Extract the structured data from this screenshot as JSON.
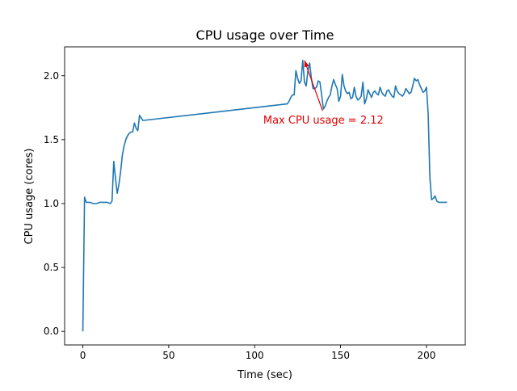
{
  "chart_data": {
    "type": "line",
    "title": "CPU usage over Time",
    "xlabel": "Time (sec)",
    "ylabel": "CPU usage (cores)",
    "xlim": [
      -10.6,
      222.6
    ],
    "ylim": [
      -0.106,
      2.226
    ],
    "xticks": [
      0,
      50,
      100,
      150,
      200
    ],
    "xtick_labels": [
      "0",
      "50",
      "100",
      "150",
      "200"
    ],
    "yticks": [
      0.0,
      0.5,
      1.0,
      1.5,
      2.0
    ],
    "ytick_labels": [
      "0.0",
      "0.5",
      "1.0",
      "1.5",
      "2.0"
    ],
    "grid": false,
    "series": [
      {
        "color": "#1f77b4",
        "x": [
          0,
          1,
          2,
          4,
          6,
          8,
          10,
          12,
          14,
          16,
          17,
          18,
          19,
          20,
          21,
          22,
          23,
          24,
          25,
          26,
          27,
          28,
          29,
          30,
          31,
          32,
          33,
          35,
          119,
          120,
          121,
          122,
          123,
          124,
          125,
          126,
          127,
          128,
          129,
          130,
          131,
          132,
          133,
          134,
          135,
          136,
          137,
          138,
          139,
          140,
          141,
          142,
          143,
          144,
          145,
          146,
          147,
          148,
          149,
          150,
          151,
          152,
          153,
          154,
          155,
          156,
          157,
          158,
          159,
          160,
          161,
          162,
          163,
          164,
          165,
          166,
          167,
          168,
          169,
          170,
          171,
          172,
          173,
          174,
          175,
          176,
          177,
          178,
          179,
          180,
          181,
          182,
          183,
          184,
          185,
          186,
          187,
          188,
          189,
          190,
          191,
          192,
          193,
          194,
          195,
          196,
          197,
          198,
          199,
          200,
          201,
          202,
          203,
          204,
          205,
          206,
          207,
          208,
          209,
          210,
          212
        ],
        "y": [
          0.0,
          1.05,
          1.01,
          1.01,
          1.0,
          1.0,
          1.01,
          1.01,
          1.01,
          1.0,
          1.02,
          1.33,
          1.2,
          1.08,
          1.15,
          1.25,
          1.38,
          1.45,
          1.5,
          1.53,
          1.55,
          1.56,
          1.56,
          1.63,
          1.59,
          1.57,
          1.69,
          1.65,
          1.78,
          1.8,
          1.83,
          1.85,
          1.85,
          2.04,
          1.98,
          1.94,
          1.96,
          2.12,
          1.95,
          1.92,
          2.04,
          2.1,
          1.98,
          1.9,
          1.9,
          1.91,
          1.96,
          1.95,
          1.85,
          1.74,
          1.76,
          1.8,
          1.83,
          1.85,
          1.92,
          1.97,
          1.93,
          1.9,
          1.8,
          1.84,
          2.01,
          1.92,
          1.88,
          1.86,
          1.87,
          1.82,
          1.83,
          1.91,
          1.84,
          1.81,
          1.82,
          1.84,
          1.95,
          1.78,
          1.82,
          1.89,
          1.86,
          1.83,
          1.87,
          1.88,
          1.86,
          1.85,
          1.91,
          1.87,
          1.85,
          1.84,
          1.88,
          1.89,
          1.86,
          1.84,
          1.83,
          1.92,
          1.88,
          1.86,
          1.85,
          1.84,
          1.86,
          1.9,
          1.88,
          1.86,
          1.87,
          1.92,
          1.98,
          1.96,
          1.97,
          1.93,
          1.9,
          1.87,
          1.88,
          1.91,
          1.7,
          1.2,
          1.03,
          1.04,
          1.06,
          1.02,
          1.01,
          1.01,
          1.01,
          1.01,
          1.01
        ]
      }
    ],
    "annotations": [
      {
        "text": "Max CPU usage = 2.12",
        "color": "#e00000",
        "point": [
          129,
          2.12
        ],
        "text_anchor": [
          140,
          1.65
        ]
      }
    ]
  }
}
